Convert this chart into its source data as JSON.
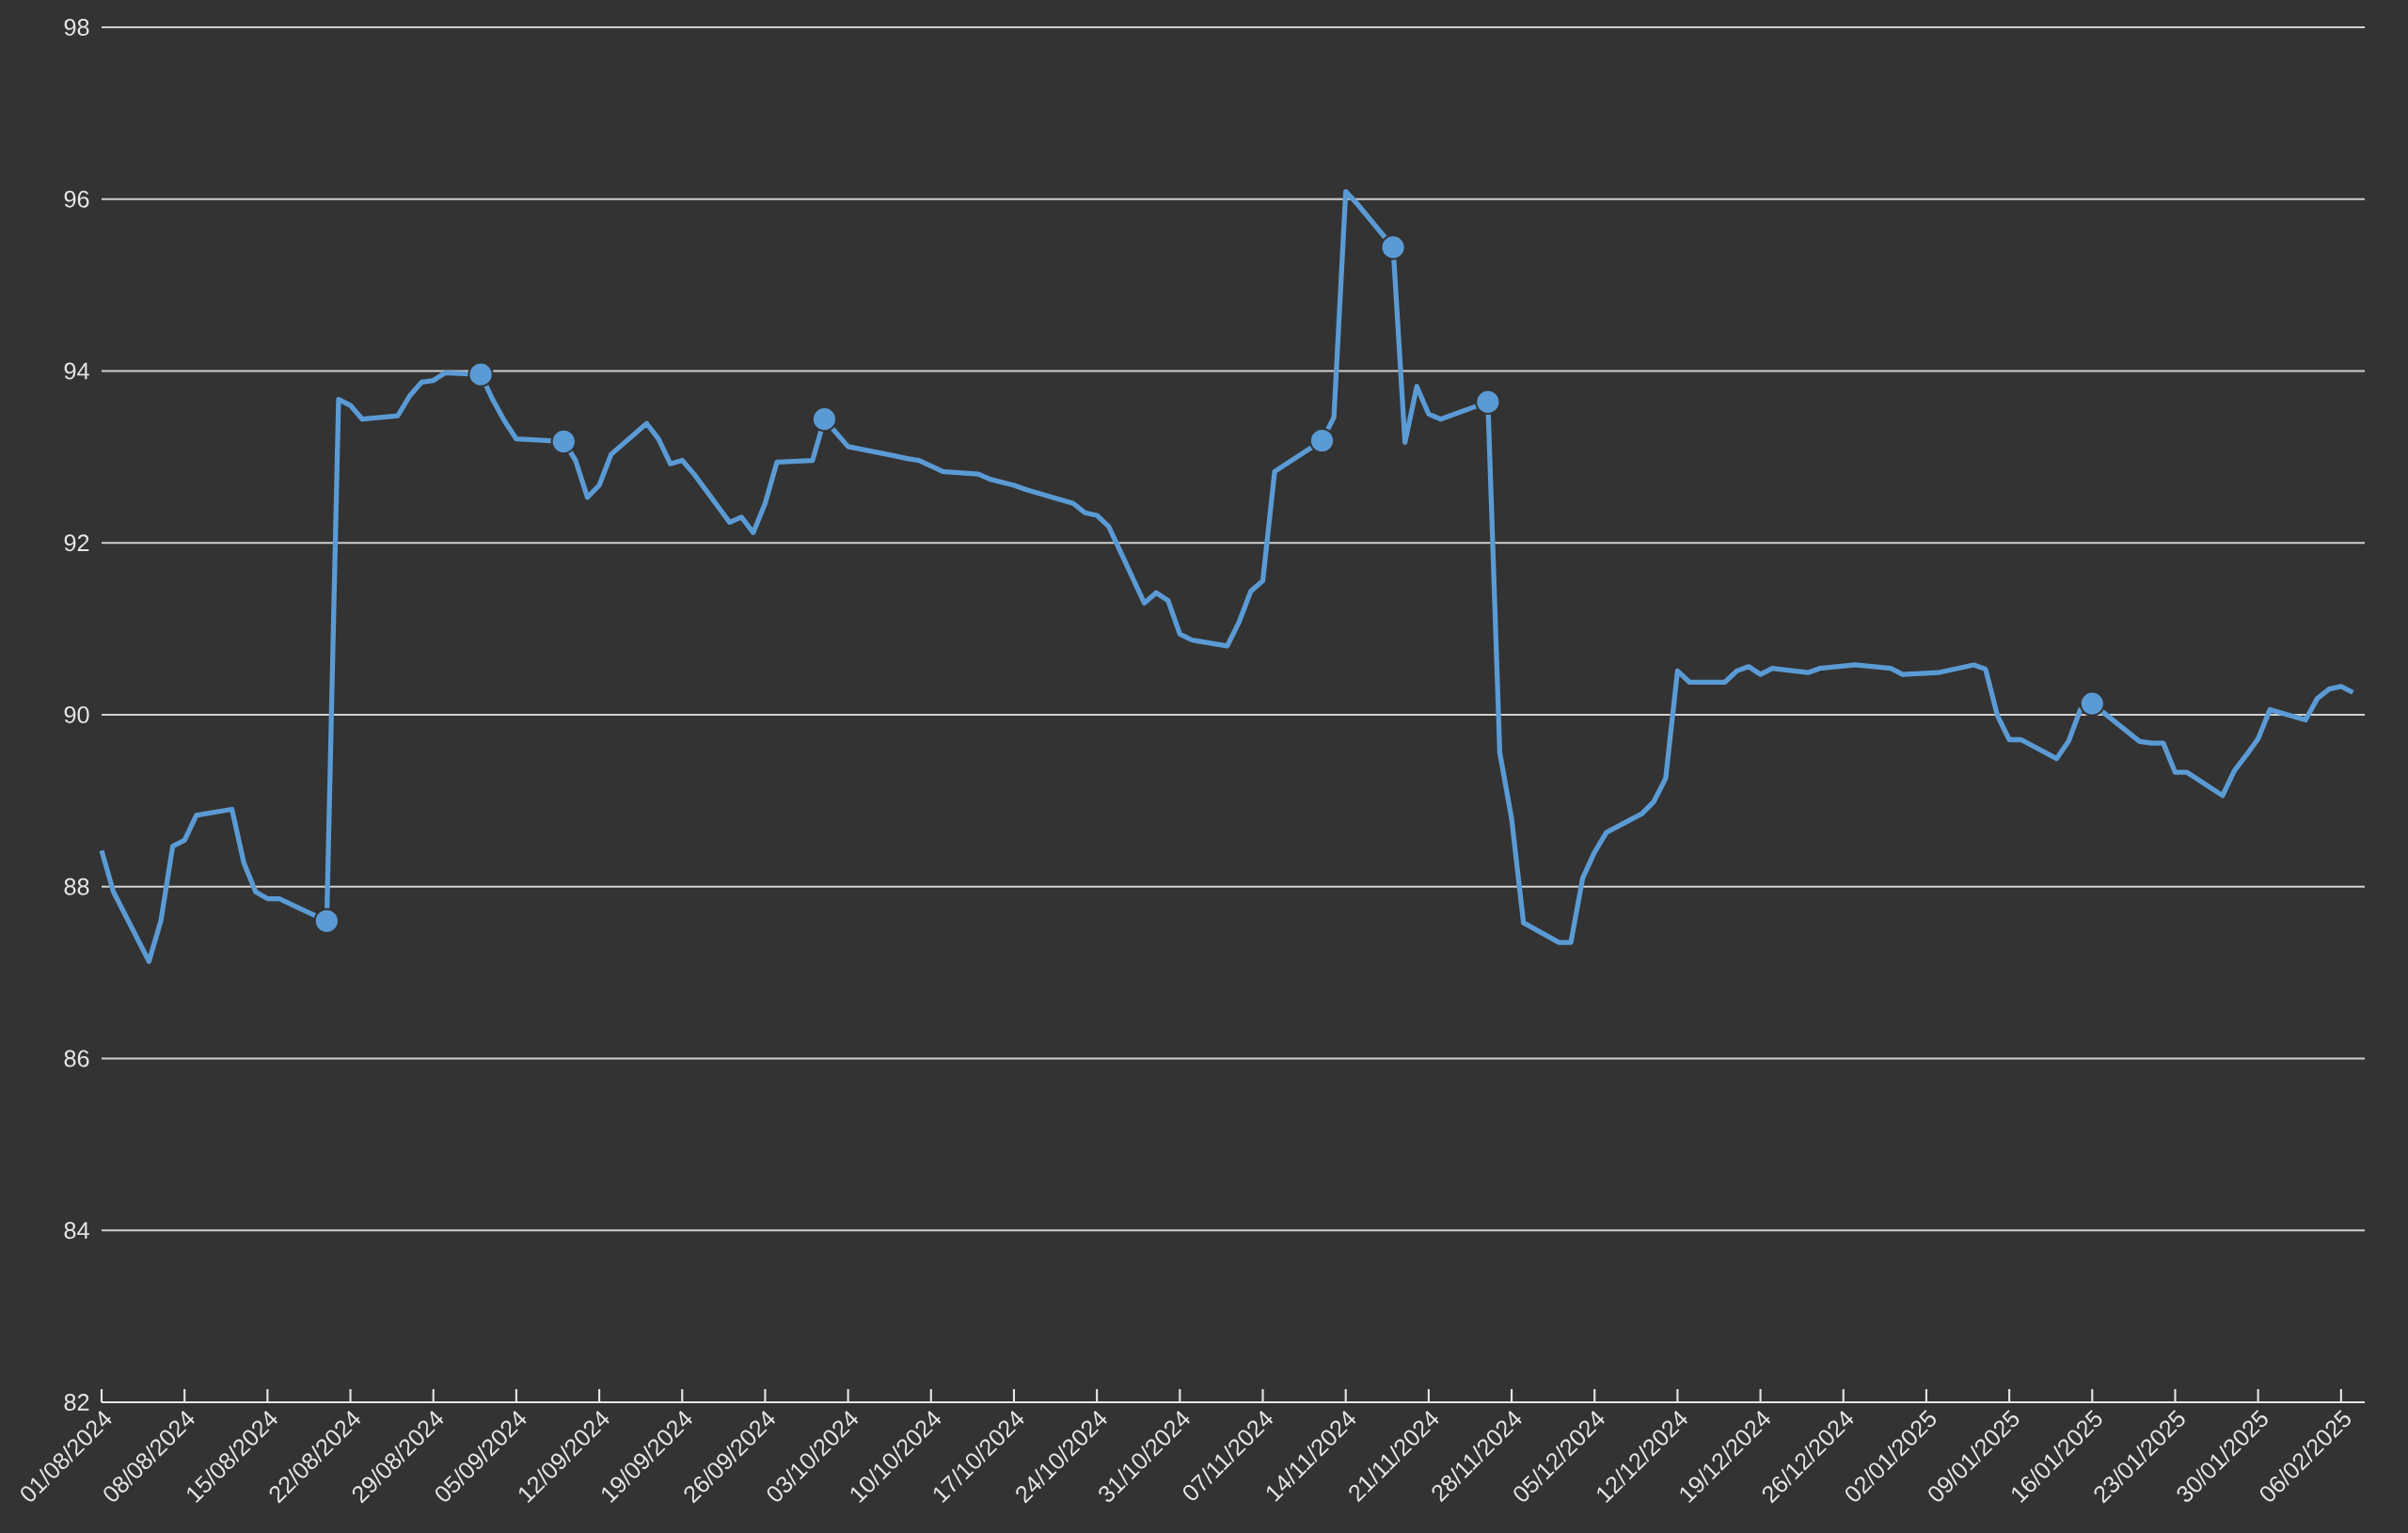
{
  "chart_data": {
    "type": "line",
    "x": [
      "2024-08-01",
      "2024-08-02",
      "2024-08-05",
      "2024-08-06",
      "2024-08-07",
      "2024-08-08",
      "2024-08-09",
      "2024-08-12",
      "2024-08-13",
      "2024-08-14",
      "2024-08-15",
      "2024-08-16",
      "2024-08-20",
      "2024-08-21",
      "2024-08-22",
      "2024-08-23",
      "2024-08-26",
      "2024-08-27",
      "2024-08-28",
      "2024-08-29",
      "2024-08-30",
      "2024-09-02",
      "2024-09-03",
      "2024-09-04",
      "2024-09-05",
      "2024-09-09",
      "2024-09-10",
      "2024-09-11",
      "2024-09-12",
      "2024-09-13",
      "2024-09-16",
      "2024-09-17",
      "2024-09-18",
      "2024-09-19",
      "2024-09-20",
      "2024-09-23",
      "2024-09-24",
      "2024-09-25",
      "2024-09-26",
      "2024-09-27",
      "2024-09-30",
      "2024-10-01",
      "2024-10-03",
      "2024-10-07",
      "2024-10-08",
      "2024-10-09",
      "2024-10-11",
      "2024-10-14",
      "2024-10-15",
      "2024-10-17",
      "2024-10-18",
      "2024-10-22",
      "2024-10-23",
      "2024-10-24",
      "2024-10-25",
      "2024-10-28",
      "2024-10-29",
      "2024-10-30",
      "2024-10-31",
      "2024-11-01",
      "2024-11-04",
      "2024-11-05",
      "2024-11-06",
      "2024-11-07",
      "2024-11-08",
      "2024-11-12",
      "2024-11-13",
      "2024-11-14",
      "2024-11-15",
      "2024-11-18",
      "2024-11-19",
      "2024-11-20",
      "2024-11-21",
      "2024-11-22",
      "2024-11-26",
      "2024-11-27",
      "2024-11-28",
      "2024-11-29",
      "2024-12-02",
      "2024-12-03",
      "2024-12-04",
      "2024-12-05",
      "2024-12-06",
      "2024-12-09",
      "2024-12-10",
      "2024-12-11",
      "2024-12-12",
      "2024-12-13",
      "2024-12-16",
      "2024-12-17",
      "2024-12-18",
      "2024-12-19",
      "2024-12-20",
      "2024-12-23",
      "2024-12-24",
      "2024-12-27",
      "2024-12-30",
      "2024-12-31",
      "2025-01-03",
      "2025-01-06",
      "2025-01-07",
      "2025-01-08",
      "2025-01-09",
      "2025-01-10",
      "2025-01-13",
      "2025-01-14",
      "2025-01-15",
      "2025-01-16",
      "2025-01-20",
      "2025-01-21",
      "2025-01-22",
      "2025-01-23",
      "2025-01-24",
      "2025-01-27",
      "2025-01-28",
      "2025-01-29",
      "2025-01-30",
      "2025-01-31",
      "2025-02-03",
      "2025-02-04",
      "2025-02-05",
      "2025-02-06",
      "2025-02-07"
    ],
    "series": [
      {
        "color": "#5b9bd5",
        "values": [
          88.42,
          87.94,
          87.13,
          87.6,
          88.47,
          88.54,
          88.83,
          88.9,
          88.28,
          87.94,
          87.86,
          87.86,
          87.6,
          93.67,
          93.6,
          93.44,
          93.48,
          93.71,
          93.87,
          93.89,
          93.98,
          93.96,
          93.67,
          93.42,
          93.21,
          93.18,
          92.96,
          92.53,
          92.67,
          93.03,
          93.39,
          93.21,
          92.92,
          92.96,
          92.8,
          92.24,
          92.3,
          92.12,
          92.46,
          92.94,
          92.96,
          93.44,
          93.12,
          93.01,
          92.98,
          92.96,
          92.83,
          92.8,
          92.74,
          92.67,
          92.62,
          92.46,
          92.35,
          92.32,
          92.19,
          91.3,
          91.42,
          91.33,
          90.94,
          90.87,
          90.8,
          91.08,
          91.44,
          91.56,
          92.83,
          93.19,
          93.46,
          96.09,
          95.94,
          95.44,
          93.17,
          93.82,
          93.5,
          93.44,
          93.64,
          89.56,
          88.79,
          87.58,
          87.35,
          87.35,
          88.1,
          88.4,
          88.63,
          88.85,
          88.99,
          89.26,
          90.51,
          90.38,
          90.38,
          90.51,
          90.56,
          90.47,
          90.54,
          90.49,
          90.54,
          90.58,
          90.54,
          90.47,
          90.49,
          90.58,
          90.53,
          89.99,
          89.71,
          89.71,
          89.49,
          89.69,
          90.06,
          90.13,
          89.69,
          89.67,
          89.67,
          89.33,
          89.33,
          89.06,
          89.35,
          89.53,
          89.72,
          90.06,
          89.94,
          90.19,
          90.3,
          90.33,
          90.26
        ]
      },
      {
        "type": "scatter",
        "marker": "circle",
        "color": "#5b9bd5",
        "x": [
          "2024-08-20",
          "2024-09-02",
          "2024-09-09",
          "2024-10-01",
          "2024-11-12",
          "2024-11-18",
          "2024-11-26",
          "2025-01-16"
        ],
        "values": [
          87.6,
          93.96,
          93.18,
          93.44,
          93.19,
          95.44,
          93.64,
          90.13
        ]
      }
    ],
    "xlim": [
      "2024-08-01",
      "2025-02-08"
    ],
    "xticks": [
      {
        "value": "2024-08-01",
        "label": "01/08/2024"
      },
      {
        "value": "2024-08-08",
        "label": "08/08/2024"
      },
      {
        "value": "2024-08-15",
        "label": "15/08/2024"
      },
      {
        "value": "2024-08-22",
        "label": "22/08/2024"
      },
      {
        "value": "2024-08-29",
        "label": "29/08/2024"
      },
      {
        "value": "2024-09-05",
        "label": "05/09/2024"
      },
      {
        "value": "2024-09-12",
        "label": "12/09/2024"
      },
      {
        "value": "2024-09-19",
        "label": "19/09/2024"
      },
      {
        "value": "2024-09-26",
        "label": "26/09/2024"
      },
      {
        "value": "2024-10-03",
        "label": "03/10/2024"
      },
      {
        "value": "2024-10-10",
        "label": "10/10/2024"
      },
      {
        "value": "2024-10-17",
        "label": "17/10/2024"
      },
      {
        "value": "2024-10-24",
        "label": "24/10/2024"
      },
      {
        "value": "2024-10-31",
        "label": "31/10/2024"
      },
      {
        "value": "2024-11-07",
        "label": "07/11/2024"
      },
      {
        "value": "2024-11-14",
        "label": "14/11/2024"
      },
      {
        "value": "2024-11-21",
        "label": "21/11/2024"
      },
      {
        "value": "2024-11-28",
        "label": "28/11/2024"
      },
      {
        "value": "2024-12-05",
        "label": "05/12/2024"
      },
      {
        "value": "2024-12-12",
        "label": "12/12/2024"
      },
      {
        "value": "2024-12-19",
        "label": "19/12/2024"
      },
      {
        "value": "2024-12-26",
        "label": "26/12/2024"
      },
      {
        "value": "2025-01-02",
        "label": "02/01/2025"
      },
      {
        "value": "2025-01-09",
        "label": "09/01/2025"
      },
      {
        "value": "2025-01-16",
        "label": "16/01/2025"
      },
      {
        "value": "2025-01-23",
        "label": "23/01/2025"
      },
      {
        "value": "2025-01-30",
        "label": "30/01/2025"
      },
      {
        "value": "2025-02-06",
        "label": "06/02/2025"
      }
    ],
    "ylim": [
      82,
      98
    ],
    "yticks": [
      82,
      84,
      86,
      88,
      90,
      92,
      94,
      96,
      98
    ],
    "grid": "y"
  }
}
